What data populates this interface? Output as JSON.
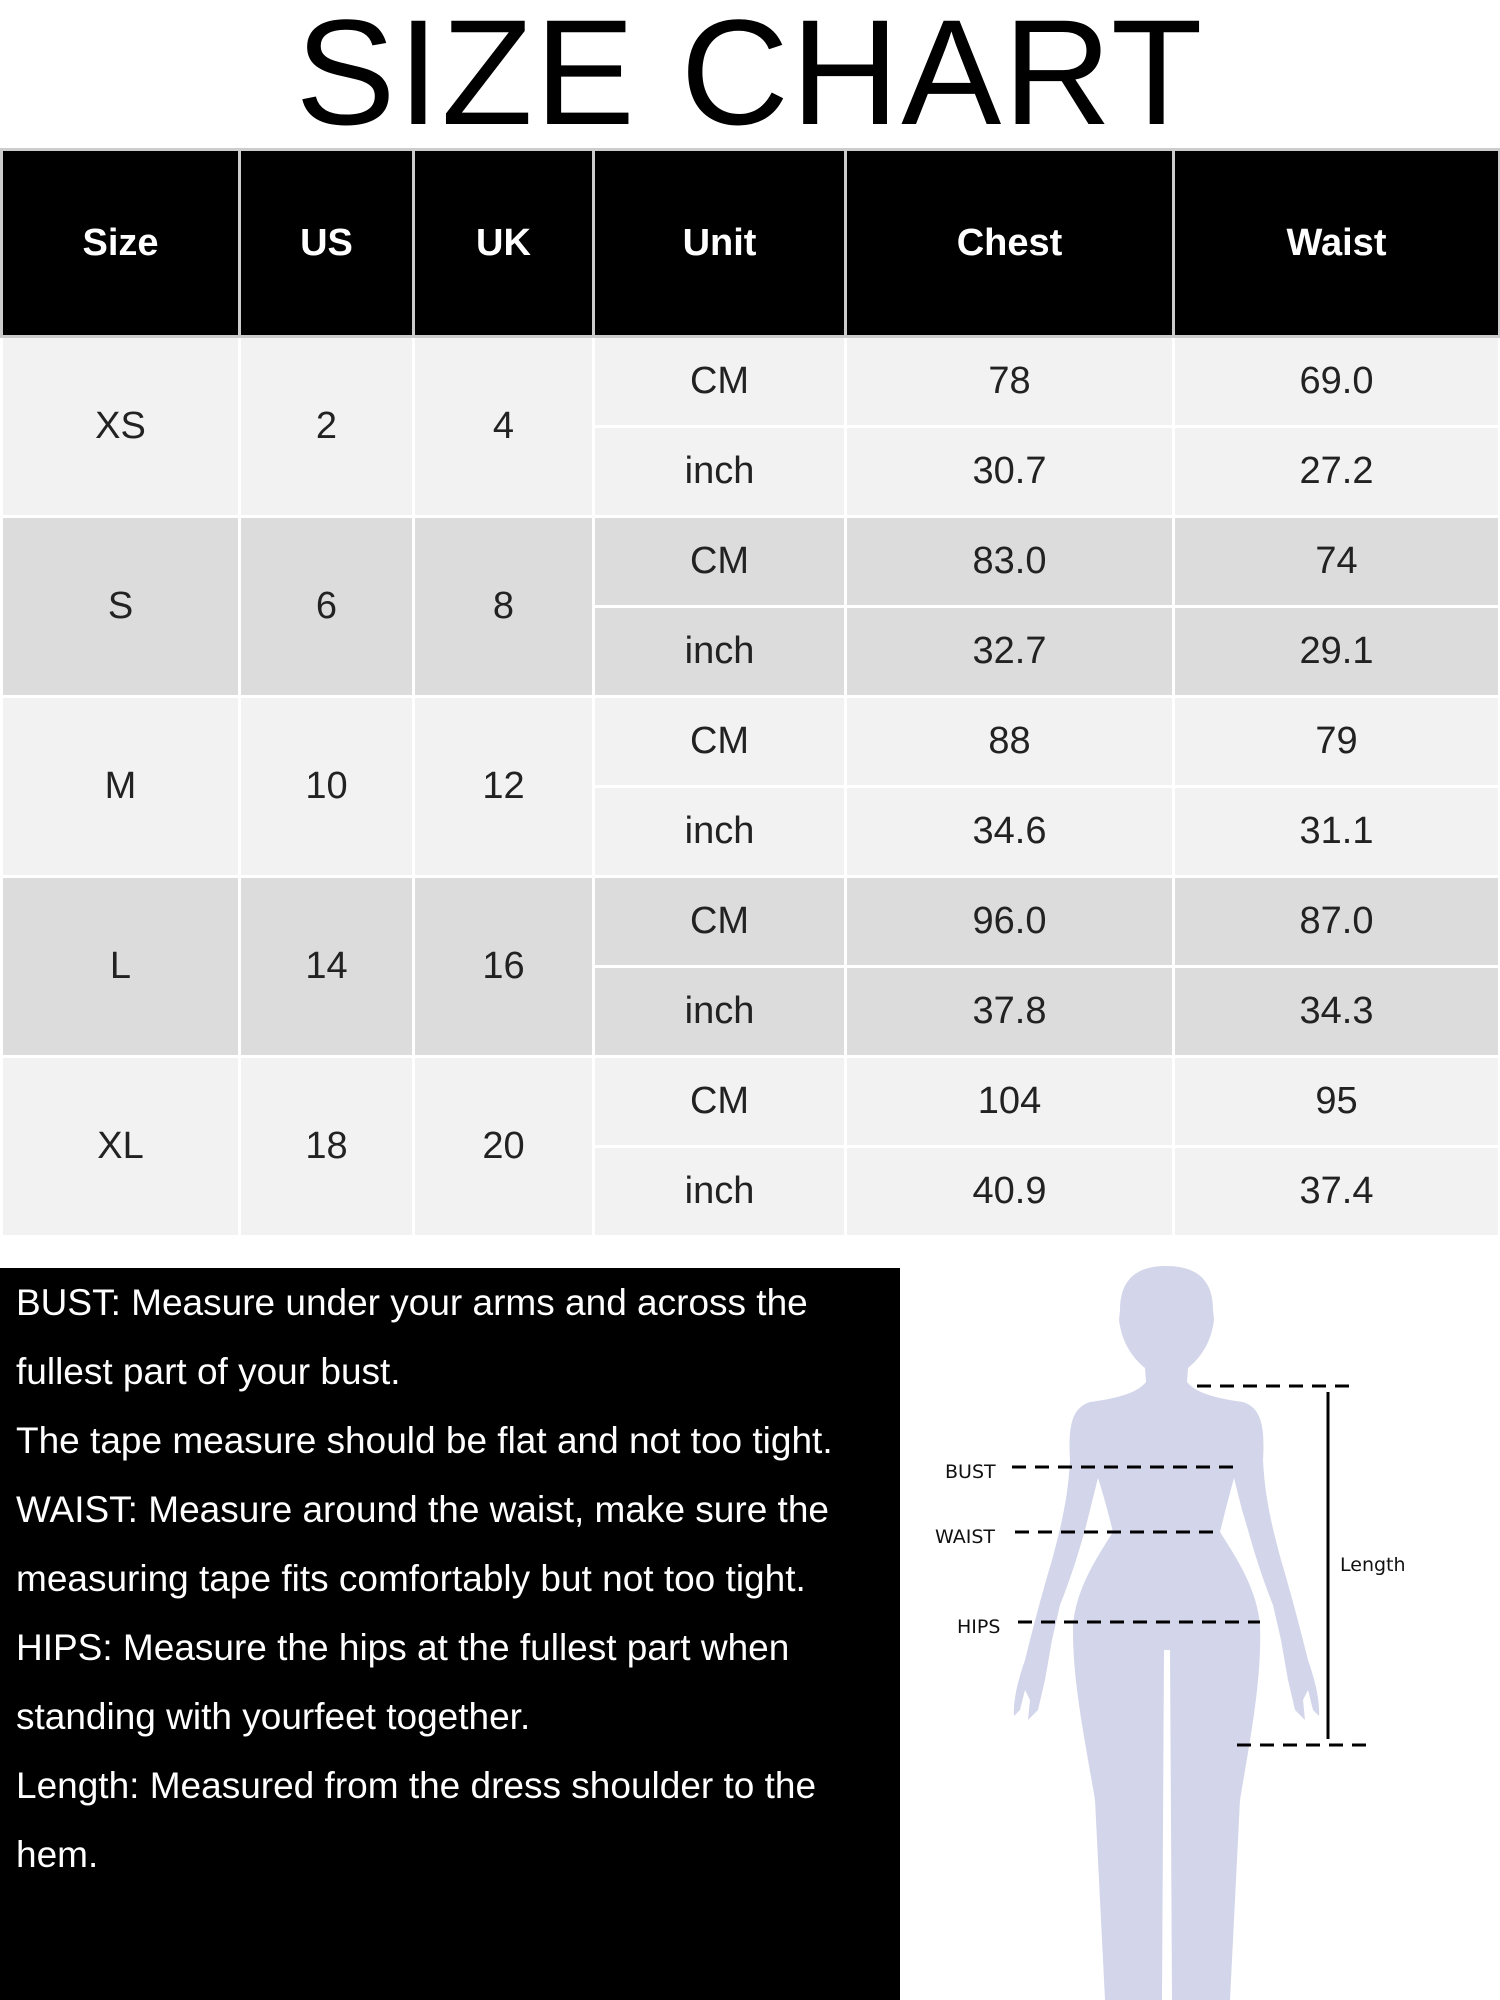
{
  "title": "SIZE CHART",
  "table": {
    "headers": [
      "Size",
      "US",
      "UK",
      "Unit",
      "Chest",
      "Waist"
    ],
    "rows": [
      {
        "size": "XS",
        "us": "2",
        "uk": "4",
        "cm": {
          "unit": "CM",
          "chest": "78",
          "waist": "69.0"
        },
        "inch": {
          "unit": "inch",
          "chest": "30.7",
          "waist": "27.2"
        }
      },
      {
        "size": "S",
        "us": "6",
        "uk": "8",
        "cm": {
          "unit": "CM",
          "chest": "83.0",
          "waist": "74"
        },
        "inch": {
          "unit": "inch",
          "chest": "32.7",
          "waist": "29.1"
        }
      },
      {
        "size": "M",
        "us": "10",
        "uk": "12",
        "cm": {
          "unit": "CM",
          "chest": "88",
          "waist": "79"
        },
        "inch": {
          "unit": "inch",
          "chest": "34.6",
          "waist": "31.1"
        }
      },
      {
        "size": "L",
        "us": "14",
        "uk": "16",
        "cm": {
          "unit": "CM",
          "chest": "96.0",
          "waist": "87.0"
        },
        "inch": {
          "unit": "inch",
          "chest": "37.8",
          "waist": "34.3"
        }
      },
      {
        "size": "XL",
        "us": "18",
        "uk": "20",
        "cm": {
          "unit": "CM",
          "chest": "104",
          "waist": "95"
        },
        "inch": {
          "unit": "inch",
          "chest": "40.9",
          "waist": "37.4"
        }
      }
    ],
    "colors": {
      "header_bg": "#000000",
      "row_light": "#f2f2f2",
      "row_dark": "#dcdcdc"
    }
  },
  "notes": [
    "BUST: Measure under your arms and across the fullest part of your bust.",
    "The tape measure should be flat and not too tight.",
    "WAIST: Measure around the waist, make sure the measuring tape fits comfortably but not too tight.",
    "HIPS: Measure the hips at the fullest part when standing with yourfeet together.",
    "Length: Measured from the dress shoulder to the hem."
  ],
  "figure": {
    "labels": {
      "bust": "BUST",
      "waist": "WAIST",
      "hips": "HIPS",
      "length": "Length"
    },
    "silhouette_color": "#d3d6ea"
  }
}
